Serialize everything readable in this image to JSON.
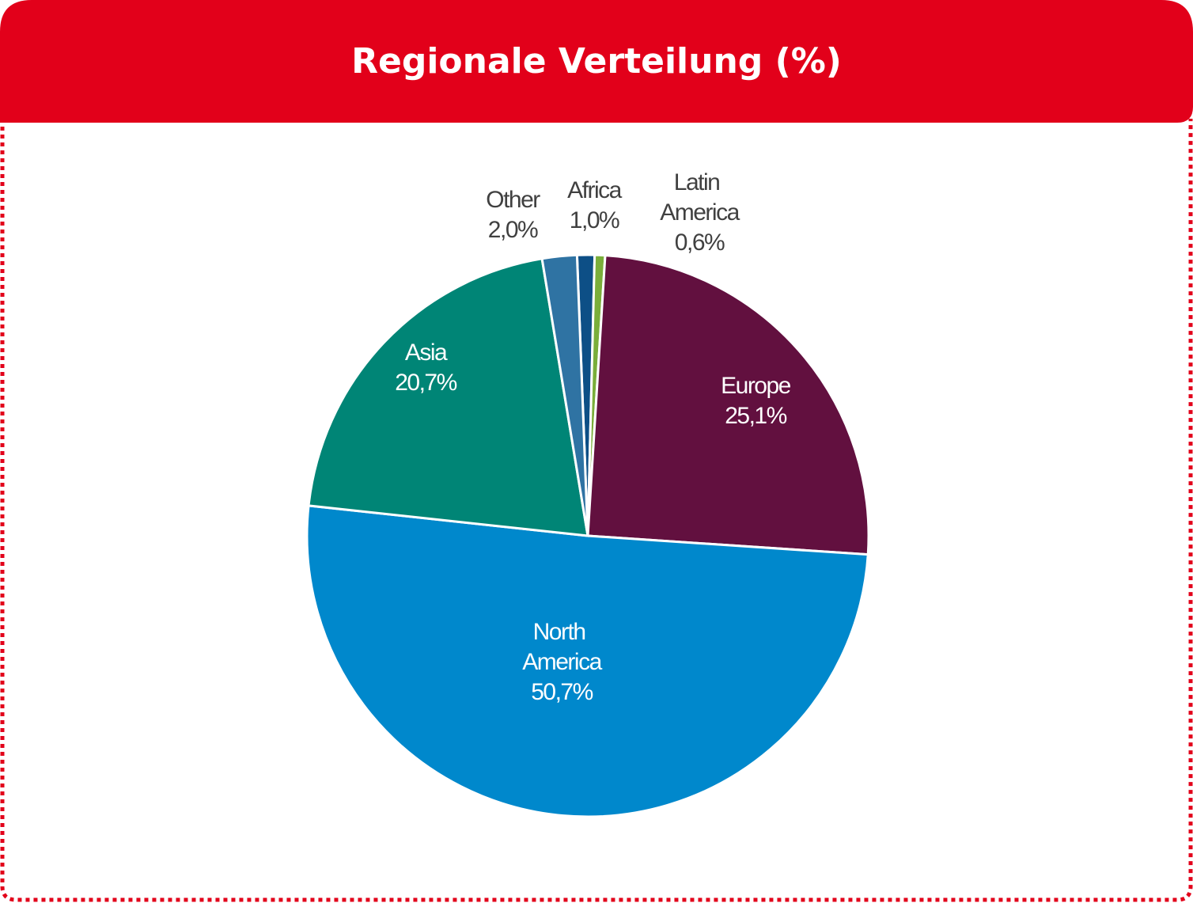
{
  "chart_data": {
    "type": "pie",
    "title": "Regionale Verteilung (%)",
    "categories": [
      "Africa",
      "Latin America",
      "Europe",
      "North America",
      "Asia",
      "Other"
    ],
    "values": [
      1.0,
      0.6,
      25.1,
      50.7,
      20.7,
      2.0
    ],
    "value_labels": [
      "1,0%",
      "0,6%",
      "25,1%",
      "50,7%",
      "20,7%",
      "2,0%"
    ],
    "colors": [
      "#0d4f86",
      "#7aae3a",
      "#62103f",
      "#0088cc",
      "#008576",
      "#2f73a3"
    ]
  }
}
